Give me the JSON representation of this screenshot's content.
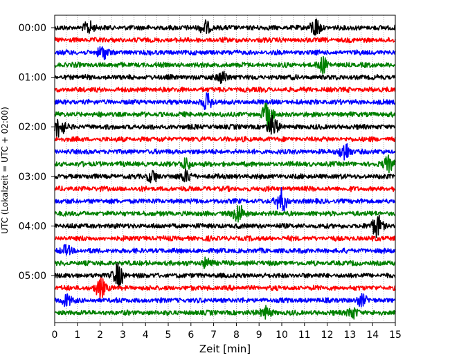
{
  "chart_data": {
    "type": "line",
    "title": "",
    "xlabel": "Zeit  [min]",
    "ylabel": "UTC (Lokalzeit = UTC + 02:00)",
    "xlim": [
      0,
      15
    ],
    "x_ticks": [
      "0",
      "1",
      "2",
      "3",
      "4",
      "5",
      "6",
      "7",
      "8",
      "9",
      "10",
      "11",
      "12",
      "13",
      "14",
      "15"
    ],
    "y_tick_labels": [
      "00:00",
      "01:00",
      "02:00",
      "03:00",
      "04:00",
      "05:00"
    ],
    "trace_interval_min": 15,
    "trace_count": 24,
    "trace_colors": [
      "#000000",
      "#ff0000",
      "#0000ff",
      "#008000"
    ],
    "vertical_grid": "dotted, every 0.5 min",
    "events": [
      {
        "trace": 0,
        "minute": 1.5,
        "amp": 1.8
      },
      {
        "trace": 0,
        "minute": 6.6,
        "amp": 2.2
      },
      {
        "trace": 0,
        "minute": 11.5,
        "amp": 2.8
      },
      {
        "trace": 2,
        "minute": 2.1,
        "amp": 2.0
      },
      {
        "trace": 3,
        "minute": 11.8,
        "amp": 2.2
      },
      {
        "trace": 4,
        "minute": 7.4,
        "amp": 1.8
      },
      {
        "trace": 6,
        "minute": 6.7,
        "amp": 2.5
      },
      {
        "trace": 7,
        "minute": 9.4,
        "amp": 4.2
      },
      {
        "trace": 8,
        "minute": 0.2,
        "amp": 3.2
      },
      {
        "trace": 8,
        "minute": 9.6,
        "amp": 3.0
      },
      {
        "trace": 10,
        "minute": 12.8,
        "amp": 3.0
      },
      {
        "trace": 11,
        "minute": 14.7,
        "amp": 2.2
      },
      {
        "trace": 11,
        "minute": 5.8,
        "amp": 1.6
      },
      {
        "trace": 12,
        "minute": 4.3,
        "amp": 1.8
      },
      {
        "trace": 12,
        "minute": 5.8,
        "amp": 1.8
      },
      {
        "trace": 14,
        "minute": 10.0,
        "amp": 3.6
      },
      {
        "trace": 15,
        "minute": 8.1,
        "amp": 3.0
      },
      {
        "trace": 16,
        "minute": 14.2,
        "amp": 3.4
      },
      {
        "trace": 18,
        "minute": 0.5,
        "amp": 1.6
      },
      {
        "trace": 19,
        "minute": 6.7,
        "amp": 1.6
      },
      {
        "trace": 20,
        "minute": 2.8,
        "amp": 3.6
      },
      {
        "trace": 21,
        "minute": 2.0,
        "amp": 3.0
      },
      {
        "trace": 22,
        "minute": 0.5,
        "amp": 1.8
      },
      {
        "trace": 22,
        "minute": 13.5,
        "amp": 1.6
      },
      {
        "trace": 23,
        "minute": 9.3,
        "amp": 1.8
      },
      {
        "trace": 23,
        "minute": 13.1,
        "amp": 1.8
      }
    ]
  }
}
